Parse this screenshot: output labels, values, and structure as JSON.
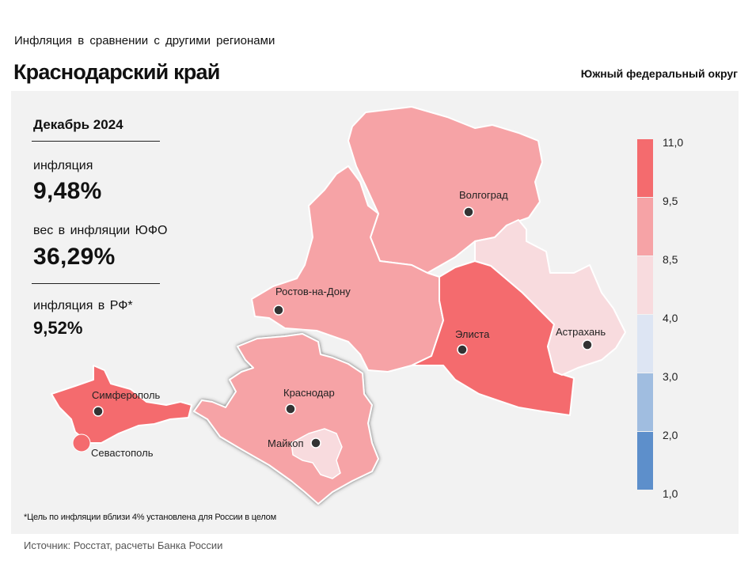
{
  "header": {
    "subtitle": "Инфляция в сравнении с другими регионами",
    "title": "Краснодарский край",
    "district": "Южный федеральный округ"
  },
  "stats": {
    "period": "Декабрь 2024",
    "inflation_label": "инфляция",
    "inflation_value": "9,48%",
    "weight_label": "вес в инфляции ЮФО",
    "weight_value": "36,29%",
    "rf_label": "инфляция в РФ*",
    "rf_value": "9,52%"
  },
  "legend": {
    "ticks": [
      "11,0",
      "9,5",
      "8,5",
      "4,0",
      "3,0",
      "2,0",
      "1,0"
    ],
    "bins": [
      {
        "from": 9.5,
        "to": 11.0,
        "color": "#f46b6e"
      },
      {
        "from": 8.5,
        "to": 9.5,
        "color": "#f6a3a6"
      },
      {
        "from": 4.0,
        "to": 8.5,
        "color": "#f8dbde"
      },
      {
        "from": 3.0,
        "to": 4.0,
        "color": "#dde5f3"
      },
      {
        "from": 2.0,
        "to": 3.0,
        "color": "#a0bde0"
      },
      {
        "from": 1.0,
        "to": 2.0,
        "color": "#5d8fcb"
      }
    ]
  },
  "regions": [
    {
      "name": "Волгоградская область",
      "color": "#f6a3a6"
    },
    {
      "name": "Ростовская область",
      "color": "#f6a3a6"
    },
    {
      "name": "Краснодарский край",
      "color": "#f6a3a6"
    },
    {
      "name": "Республика Адыгея",
      "color": "#f8dbde"
    },
    {
      "name": "Республика Калмыкия",
      "color": "#f46b6e"
    },
    {
      "name": "Астраханская область",
      "color": "#f8dbde"
    },
    {
      "name": "Республика Крым",
      "color": "#f46b6e"
    },
    {
      "name": "Севастополь",
      "color": "#f46b6e"
    }
  ],
  "cities": {
    "volgograd": "Волгоград",
    "rostov": "Ростов-на-Дону",
    "elista": "Элиста",
    "astrakhan": "Астрахань",
    "krasnodar": "Краснодар",
    "maykop": "Майкоп",
    "simferopol": "Симферополь",
    "sevastopol": "Севастополь"
  },
  "footnote": "*Цель по инфляции вблизи 4% установлена для России в целом",
  "source": "Источник: Росстат, расчеты Банка России"
}
